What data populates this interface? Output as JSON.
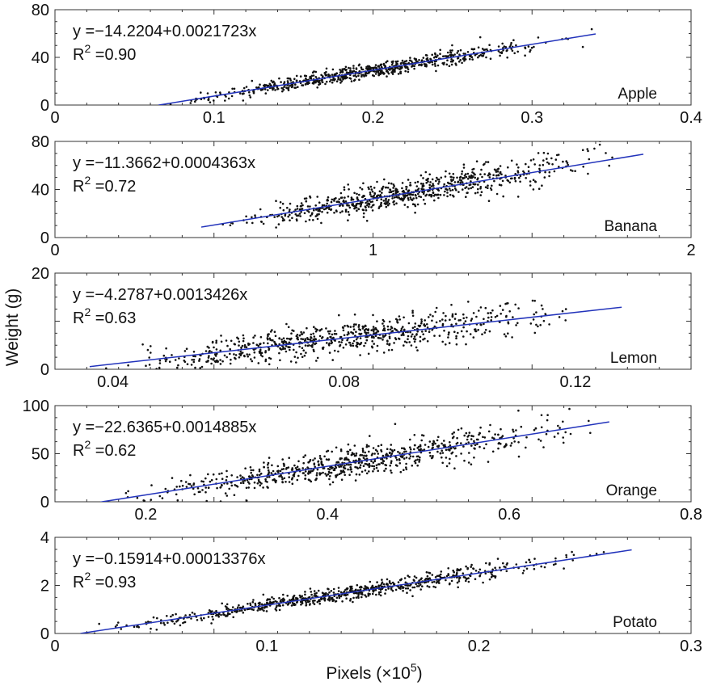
{
  "figure": {
    "ylabel": "Weight (g)",
    "xlabel": "Pixels (×10",
    "xlabel_exponent": "5",
    "xlabel_close": ")"
  },
  "chart_data": [
    {
      "type": "scatter",
      "name": "Apple",
      "fit": {
        "intercept": -14.2204,
        "slope": 0.0021723
      },
      "equation": "y =−14.2204+0.0021723x",
      "r2_label": "R",
      "r2_exp": "2",
      "r2_value": " =0.90",
      "r2": 0.9,
      "xlim": [
        0,
        0.4
      ],
      "ylim": [
        0,
        80
      ],
      "xticks": [
        0,
        0.1,
        0.2,
        0.3,
        0.4
      ],
      "xtick_labels": [
        "0",
        "0.1",
        "0.2",
        "0.3",
        "0.4"
      ],
      "yticks": [
        0,
        40,
        80
      ],
      "ytick_labels": [
        "0",
        "40",
        "80"
      ],
      "data_xrange": [
        0.06,
        0.34
      ],
      "fit_xrange": [
        0.065,
        0.34
      ],
      "noise_sd": 4,
      "n_points": 700,
      "seed": 11
    },
    {
      "type": "scatter",
      "name": "Banana",
      "fit": {
        "intercept": -11.3662,
        "slope": 0.0004363
      },
      "equation": "y =−11.3662+0.0004363x",
      "r2_label": "R",
      "r2_exp": "2",
      "r2_value": " =0.72",
      "r2": 0.72,
      "xlim": [
        0,
        2
      ],
      "ylim": [
        0,
        80
      ],
      "xticks": [
        0,
        1,
        2
      ],
      "xtick_labels": [
        "0",
        "1",
        "2"
      ],
      "yticks": [
        0,
        40,
        80
      ],
      "ytick_labels": [
        "0",
        "40",
        "80"
      ],
      "data_xrange": [
        0.45,
        1.85
      ],
      "fit_xrange": [
        0.46,
        1.85
      ],
      "noise_sd": 8,
      "n_points": 700,
      "seed": 23
    },
    {
      "type": "scatter",
      "name": "Lemon",
      "fit": {
        "intercept": -4.2787,
        "slope": 0.0013426
      },
      "equation": "y =−4.2787+0.0013426x",
      "r2_label": "R",
      "r2_exp": "2",
      "r2_value": " =0.63",
      "r2": 0.63,
      "xlim": [
        0.03,
        0.14
      ],
      "ylim": [
        0,
        20
      ],
      "xticks": [
        0.04,
        0.08,
        0.12
      ],
      "xtick_labels": [
        "0.04",
        "0.08",
        "0.12"
      ],
      "yticks": [
        0,
        10,
        20
      ],
      "ytick_labels": [
        "0",
        "",
        "20"
      ],
      "data_xrange": [
        0.036,
        0.128
      ],
      "fit_xrange": [
        0.036,
        0.128
      ],
      "noise_sd": 2.2,
      "n_points": 700,
      "seed": 37
    },
    {
      "type": "scatter",
      "name": "Orange",
      "fit": {
        "intercept": -22.6365,
        "slope": 0.0014885
      },
      "equation": "y =−22.6365+0.0014885x",
      "r2_label": "R",
      "r2_exp": "2",
      "r2_value": " =0.62",
      "r2": 0.62,
      "xlim": [
        0.1,
        0.8
      ],
      "ylim": [
        0,
        100
      ],
      "xticks": [
        0.2,
        0.4,
        0.6,
        0.8
      ],
      "xtick_labels": [
        "0.2",
        "0.4",
        "0.6",
        "0.8"
      ],
      "yticks": [
        0,
        50,
        100
      ],
      "ytick_labels": [
        "0",
        "50",
        "100"
      ],
      "data_xrange": [
        0.15,
        0.72
      ],
      "fit_xrange": [
        0.15,
        0.71
      ],
      "noise_sd": 11,
      "n_points": 700,
      "seed": 51
    },
    {
      "type": "scatter",
      "name": "Potato",
      "fit": {
        "intercept": -0.15914,
        "slope": 0.00013376
      },
      "equation": "y =−0.15914+0.00013376x",
      "r2_label": "R",
      "r2_exp": "2",
      "r2_value": " =0.93",
      "r2": 0.93,
      "xlim": [
        0,
        0.3
      ],
      "ylim": [
        0,
        4
      ],
      "xticks": [
        0,
        0.1,
        0.2,
        0.3
      ],
      "xtick_labels": [
        "0",
        "0.1",
        "0.2",
        "0.3"
      ],
      "yticks": [
        0,
        2,
        4
      ],
      "ytick_labels": [
        "0",
        "2",
        "4"
      ],
      "data_xrange": [
        0.01,
        0.27
      ],
      "fit_xrange": [
        0.012,
        0.272
      ],
      "noise_sd": 0.2,
      "n_points": 700,
      "seed": 67
    }
  ]
}
